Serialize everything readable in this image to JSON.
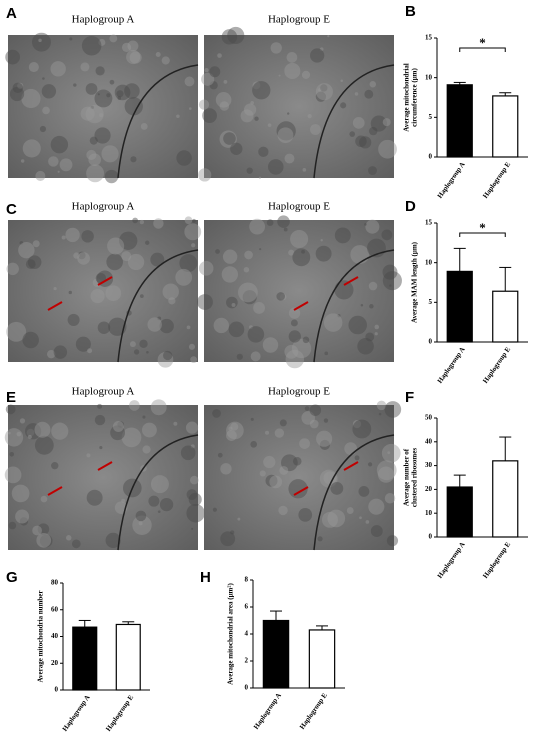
{
  "images": [
    {
      "panel": "A",
      "captions": [
        "Haplogroup A",
        "Haplogroup E"
      ]
    },
    {
      "panel": "C",
      "captions": [
        "Haplogroup A",
        "Haplogroup E"
      ]
    },
    {
      "panel": "E",
      "captions": [
        "Haplogroup A",
        "Haplogroup E"
      ]
    }
  ],
  "chart_data": [
    {
      "type": "bar",
      "panel_label": "B",
      "ylabel": [
        "Average mitochondrial",
        "circumference (μm)"
      ],
      "categories": [
        "Haplogroup A",
        "Haplogroup E"
      ],
      "values": [
        9.1,
        7.7
      ],
      "errors": [
        0.3,
        0.4
      ],
      "colors": [
        "#000000",
        "#ffffff"
      ],
      "ylim": [
        0,
        15
      ],
      "yticks": [
        0,
        5,
        10,
        15
      ],
      "significance": "*"
    },
    {
      "type": "bar",
      "panel_label": "D",
      "ylabel": [
        "Average MAM length (μm)"
      ],
      "categories": [
        "Haplogroup A",
        "Haplogroup E"
      ],
      "values": [
        8.9,
        6.4
      ],
      "errors": [
        2.9,
        3.0
      ],
      "colors": [
        "#000000",
        "#ffffff"
      ],
      "ylim": [
        0,
        15
      ],
      "yticks": [
        0,
        5,
        10,
        15
      ],
      "significance": "*"
    },
    {
      "type": "bar",
      "panel_label": "F",
      "ylabel": [
        "Average number of",
        "clustered ribosomes"
      ],
      "categories": [
        "Haplogroup A",
        "Haplogroup E"
      ],
      "values": [
        21,
        32
      ],
      "errors": [
        5,
        10
      ],
      "colors": [
        "#000000",
        "#ffffff"
      ],
      "ylim": [
        0,
        50
      ],
      "yticks": [
        0,
        10,
        20,
        30,
        40,
        50
      ]
    },
    {
      "type": "bar",
      "panel_label": "G",
      "ylabel": [
        "Average mitochondria number"
      ],
      "categories": [
        "Haplogroup A",
        "Haplogroup E"
      ],
      "values": [
        47,
        49
      ],
      "errors": [
        5,
        2
      ],
      "colors": [
        "#000000",
        "#ffffff"
      ],
      "ylim": [
        0,
        80
      ],
      "yticks": [
        0,
        20,
        40,
        60,
        80
      ]
    },
    {
      "type": "bar",
      "panel_label": "H",
      "ylabel": [
        "Average mitochondrial area (μm²)"
      ],
      "categories": [
        "Haplogroup A",
        "Haplogroup E"
      ],
      "values": [
        5.0,
        4.3
      ],
      "errors": [
        0.7,
        0.3
      ],
      "colors": [
        "#000000",
        "#ffffff"
      ],
      "ylim": [
        0,
        8
      ],
      "yticks": [
        0,
        2,
        4,
        6,
        8
      ]
    }
  ]
}
